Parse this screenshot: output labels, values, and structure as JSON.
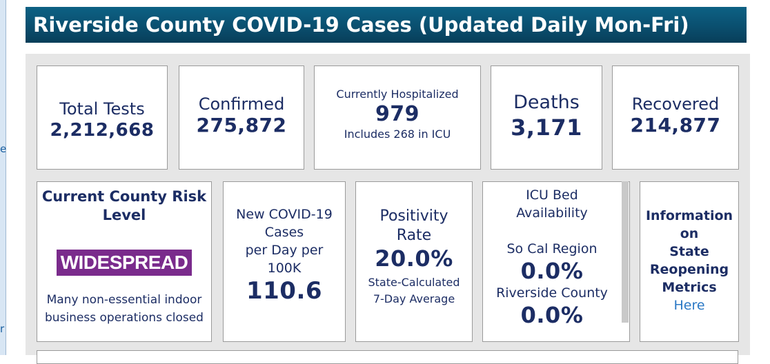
{
  "left_edge": {
    "char_top": "e",
    "char_bottom": "r"
  },
  "header": {
    "title": "Riverside County COVID-19 Cases (Updated Daily Mon-Fri)"
  },
  "stats": {
    "total_tests": {
      "label": "Total Tests",
      "value": "2,212,668"
    },
    "confirmed": {
      "label": "Confirmed",
      "value": "275,872"
    },
    "hospitalized": {
      "label": "Currently Hospitalized",
      "value": "979",
      "note": "Includes 268 in ICU"
    },
    "deaths": {
      "label": "Deaths",
      "value": "3,171"
    },
    "recovered": {
      "label": "Recovered",
      "value": "214,877"
    }
  },
  "risk": {
    "title_line1": "Current County Risk",
    "title_line2": "Level",
    "badge": "WIDESPREAD",
    "badge_color": "#7a2b8c",
    "note_line1": "Many non-essential indoor",
    "note_line2": "business operations closed"
  },
  "new_cases": {
    "line1": "New COVID-19",
    "line2": "Cases",
    "line3": "per Day per",
    "line4": "100K",
    "value": "110.6"
  },
  "positivity": {
    "line1": "Positivity",
    "line2": "Rate",
    "value": "20.0%",
    "note_line1": "State-Calculated",
    "note_line2": "7-Day Average"
  },
  "icu": {
    "line1": "ICU Bed",
    "line2": "Availability",
    "region_label": "So Cal Region",
    "region_value": "0.0%",
    "county_label": "Riverside County",
    "county_value": "0.0%"
  },
  "reopening": {
    "line1": "Information",
    "line2": "on",
    "line3": "State",
    "line4": "Reopening",
    "line5": "Metrics",
    "link": "Here"
  },
  "colors": {
    "navy_text": "#1c2d64",
    "header_bg": "#0a4f6f",
    "link": "#2a78c5"
  }
}
